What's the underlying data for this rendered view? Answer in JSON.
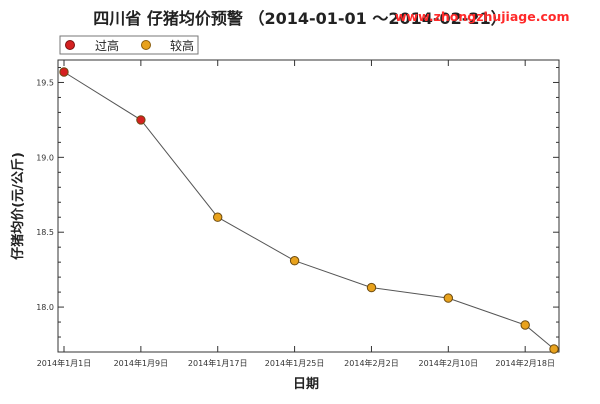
{
  "chart_data": {
    "type": "line",
    "title": "四川省 仔猪均价预警 （2014-01-01 ～2014-02-21）",
    "xlabel": "日期",
    "ylabel": "仔猪均价(元/公斤)",
    "x_ticks": [
      "2014年1月1日",
      "2014年1月9日",
      "2014年1月17日",
      "2014年1月25日",
      "2014年2月2日",
      "2014年2月10日",
      "2014年2月18日"
    ],
    "y_ticks": [
      "19.5",
      "19.0",
      "18.5",
      "18.0"
    ],
    "ylim": [
      17.7,
      19.65
    ],
    "grid": false,
    "legend_position": "top-left",
    "legend": [
      {
        "label": "过高",
        "color": "#d42020"
      },
      {
        "label": "较高",
        "color": "#e8a21d"
      }
    ],
    "x": [
      "2014-01-01",
      "2014-01-09",
      "2014-01-17",
      "2014-01-25",
      "2014-02-02",
      "2014-02-10",
      "2014-02-18",
      "2014-02-21"
    ],
    "values": [
      19.57,
      19.25,
      18.6,
      18.31,
      18.13,
      18.06,
      17.88,
      17.72
    ],
    "status": [
      "过高",
      "过高",
      "较高",
      "较高",
      "较高",
      "较高",
      "较高",
      "较高"
    ]
  },
  "watermark": "www.zhongzhujiage.com"
}
